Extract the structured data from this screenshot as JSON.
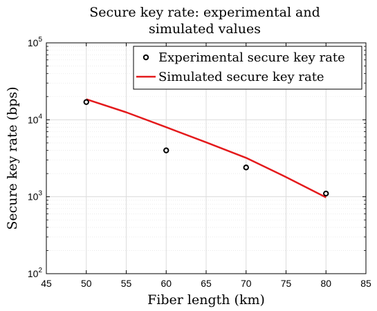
{
  "chart_data": {
    "type": "line",
    "title_lines": [
      "Secure key rate: experimental and",
      "simulated values"
    ],
    "xlabel": "Fiber length (km)",
    "ylabel": "Secure key rate (bps)",
    "xlim": [
      45,
      85
    ],
    "ylim": [
      100,
      100000
    ],
    "yscale": "log",
    "grid": true,
    "minor_grid": true,
    "legend_position": "top-right",
    "x_ticks": [
      "45",
      "50",
      "55",
      "60",
      "65",
      "70",
      "75",
      "80",
      "85"
    ],
    "y_ticks": [
      {
        "value": 100,
        "base": "10",
        "exp": "2"
      },
      {
        "value": 1000,
        "base": "10",
        "exp": "3"
      },
      {
        "value": 10000,
        "base": "10",
        "exp": "4"
      },
      {
        "value": 100000,
        "base": "10",
        "exp": "5"
      }
    ],
    "series": [
      {
        "name": "Experimental secure key rate",
        "kind": "scatter",
        "marker": "circle",
        "color": "#000000",
        "x": [
          50,
          60,
          70,
          80
        ],
        "y": [
          17000,
          4000,
          2400,
          1100
        ]
      },
      {
        "name": "Simulated secure key rate",
        "kind": "line",
        "color": "#e41a1c",
        "x": [
          50,
          55,
          60,
          65,
          70,
          75,
          80
        ],
        "y": [
          18500,
          12500,
          8000,
          5100,
          3200,
          1800,
          980
        ]
      }
    ]
  }
}
